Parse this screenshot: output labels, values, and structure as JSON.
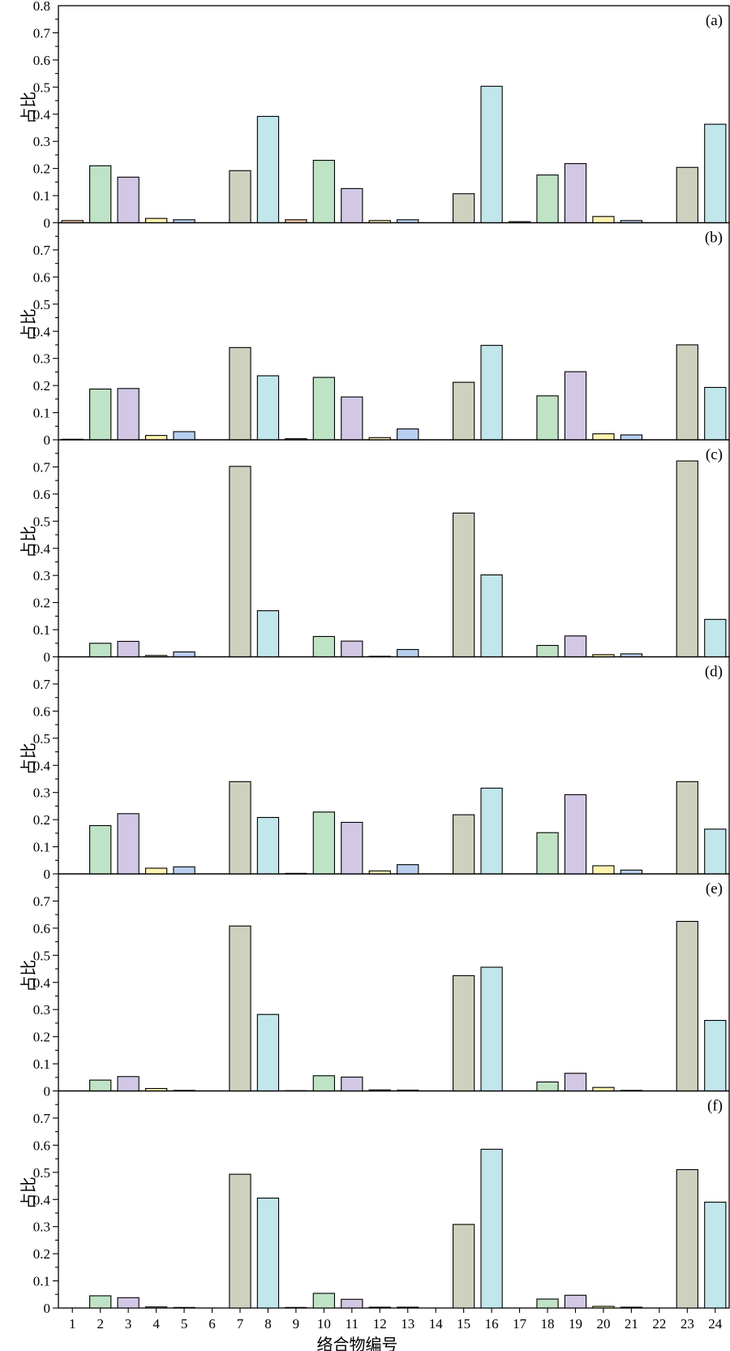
{
  "chart_data": {
    "type": "bar",
    "xlabel": "络合物编号",
    "ylabel": "占比",
    "categories": [
      "1",
      "2",
      "3",
      "4",
      "5",
      "6",
      "7",
      "8",
      "9",
      "10",
      "11",
      "12",
      "13",
      "14",
      "15",
      "16",
      "17",
      "18",
      "19",
      "20",
      "21",
      "22",
      "23",
      "24"
    ],
    "colors": [
      "#f5c6a5",
      "#bfe3c5",
      "#d3c7e6",
      "#fdf3b0",
      "#b9cff0",
      "#dcdcdc",
      "#d0d0bf",
      "#c1e6eb",
      "#f5c6a5",
      "#bfe3c5",
      "#d3c7e6",
      "#fdf3b0",
      "#b9cff0",
      "#dcdcdc",
      "#d0d0bf",
      "#c1e6eb",
      "#f5c6a5",
      "#bfe3c5",
      "#d3c7e6",
      "#fdf3b0",
      "#b9cff0",
      "#dcdcdc",
      "#d0d0bf",
      "#c1e6eb"
    ],
    "ylim": [
      0,
      0.8
    ],
    "yticks_top": [
      "0",
      "0.1",
      "0.2",
      "0.3",
      "0.4",
      "0.5",
      "0.6",
      "0.7",
      "0.8"
    ],
    "yticks": [
      "0",
      "0.1",
      "0.2",
      "0.3",
      "0.4",
      "0.5",
      "0.6",
      "0.7"
    ],
    "panels": [
      {
        "label": "(a)",
        "values": [
          0.008,
          0.21,
          0.168,
          0.016,
          0.011,
          0,
          0.192,
          0.392,
          0.011,
          0.23,
          0.126,
          0.008,
          0.011,
          0,
          0.107,
          0.503,
          0.004,
          0.176,
          0.218,
          0.023,
          0.008,
          0,
          0.204,
          0.363
        ]
      },
      {
        "label": "(b)",
        "values": [
          0.002,
          0.187,
          0.189,
          0.016,
          0.03,
          0,
          0.34,
          0.236,
          0.004,
          0.23,
          0.158,
          0.008,
          0.04,
          0,
          0.212,
          0.348,
          0,
          0.162,
          0.251,
          0.022,
          0.018,
          0,
          0.35,
          0.193
        ]
      },
      {
        "label": "(c)",
        "values": [
          0,
          0.05,
          0.057,
          0.005,
          0.018,
          0,
          0.702,
          0.17,
          0,
          0.075,
          0.058,
          0.002,
          0.027,
          0,
          0.53,
          0.302,
          0,
          0.042,
          0.077,
          0.008,
          0.011,
          0,
          0.722,
          0.138
        ]
      },
      {
        "label": "(d)",
        "values": [
          0,
          0.178,
          0.222,
          0.021,
          0.026,
          0,
          0.34,
          0.208,
          0.002,
          0.228,
          0.19,
          0.011,
          0.034,
          0,
          0.218,
          0.316,
          0,
          0.152,
          0.292,
          0.03,
          0.014,
          0,
          0.34,
          0.165
        ]
      },
      {
        "label": "(e)",
        "values": [
          0,
          0.04,
          0.053,
          0.009,
          0.002,
          0,
          0.608,
          0.282,
          0.001,
          0.056,
          0.051,
          0.004,
          0.003,
          0,
          0.425,
          0.456,
          0,
          0.033,
          0.065,
          0.013,
          0.002,
          0,
          0.625,
          0.26
        ]
      },
      {
        "label": "(f)",
        "values": [
          0,
          0.045,
          0.038,
          0.004,
          0.002,
          0,
          0.493,
          0.405,
          0.002,
          0.054,
          0.032,
          0.003,
          0.003,
          0,
          0.308,
          0.585,
          0,
          0.033,
          0.047,
          0.006,
          0.003,
          0,
          0.51,
          0.39
        ]
      }
    ]
  }
}
